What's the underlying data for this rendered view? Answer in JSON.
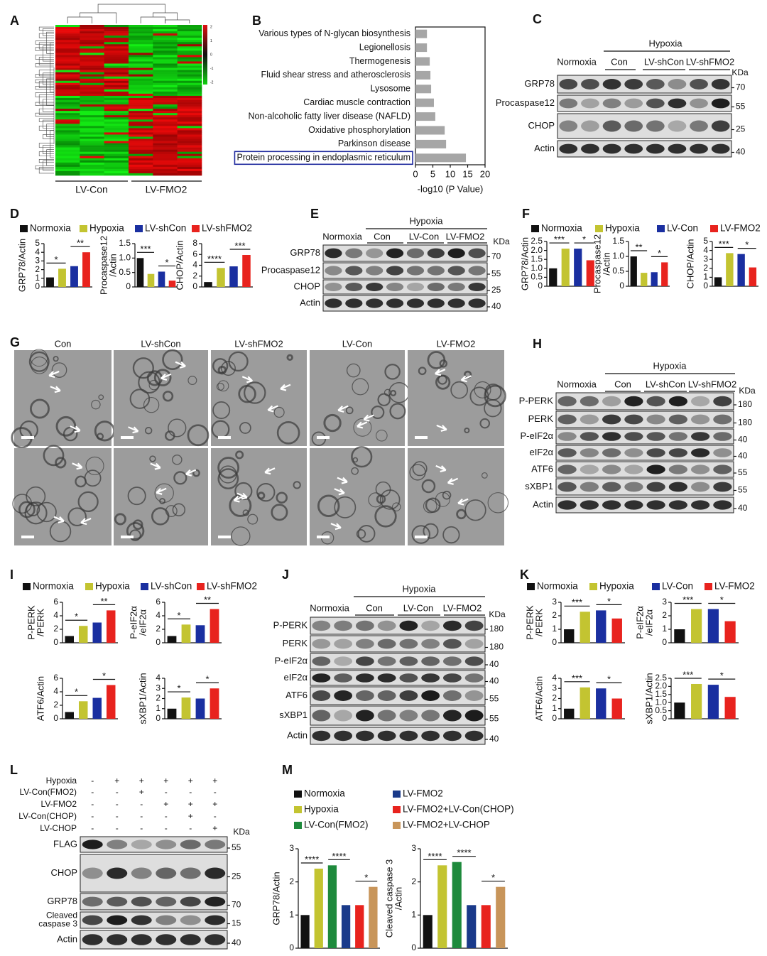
{
  "heatmap": {
    "letter": "A",
    "groups": [
      "LV-Con",
      "LV-FMO2"
    ],
    "scale_ticks": [
      2,
      1,
      0,
      -1,
      -2
    ]
  },
  "chart_data": [
    {
      "letter": "B",
      "type": "hbar",
      "categories": [
        "Various types of N-glycan biosynthesis",
        "Legionellosis",
        "Thermogenesis",
        "Fluid shear stress and atherosclerosis",
        "Lysosome",
        "Cardiac muscle contraction",
        "Non-alcoholic fatty liver disease (NAFLD)",
        "Oxidative phosphorylation",
        "Parkinson disease",
        "Protein processing in endoplasmic reticulum"
      ],
      "values": [
        3.3,
        3.3,
        4.1,
        4.3,
        4.5,
        5.3,
        5.7,
        8.4,
        8.8,
        14.5
      ],
      "color": "#a6a6a6",
      "xlabel": "-log10 (P Value)",
      "xlim": [
        0,
        20
      ],
      "xticks": [
        0,
        5,
        10,
        15,
        20
      ],
      "highlight_index": 9,
      "highlight_color": "#1f2a9e"
    },
    {
      "letter": "D",
      "type": "bar",
      "series": [
        {
          "name": "Normoxia",
          "color": "#111111"
        },
        {
          "name": "Hypoxia",
          "color": "#c3c431"
        },
        {
          "name": "LV-shCon",
          "color": "#1a2fa0"
        },
        {
          "name": "LV-shFMO2",
          "color": "#e8231e"
        }
      ],
      "charts": [
        {
          "ylabel": [
            "GRP78/Actin"
          ],
          "ylim": [
            0,
            5
          ],
          "yticks": [
            0,
            1,
            2,
            3,
            4,
            5
          ],
          "values": [
            1.1,
            2.1,
            2.4,
            4.0
          ],
          "significance": [
            "*",
            "**"
          ]
        },
        {
          "ylabel": [
            "Procaspase12",
            "/Actin"
          ],
          "ylim": [
            0,
            1.5
          ],
          "yticks": [
            0,
            0.5,
            {
              "value": 1,
              "label": "1.0"
            },
            1.5
          ],
          "values": [
            1.0,
            0.45,
            0.53,
            0.22
          ],
          "significance": [
            "***",
            "*"
          ]
        },
        {
          "ylabel": [
            "CHOP/Actin"
          ],
          "ylim": [
            0,
            8
          ],
          "yticks": [
            0,
            2,
            4,
            6,
            8
          ],
          "values": [
            0.9,
            3.5,
            3.8,
            5.9
          ],
          "significance": [
            "****",
            "***"
          ]
        }
      ]
    },
    {
      "letter": "F",
      "type": "bar",
      "series": [
        {
          "name": "Normoxia",
          "color": "#111111"
        },
        {
          "name": "Hypoxia",
          "color": "#c3c431"
        },
        {
          "name": "LV-Con",
          "color": "#1a2fa0"
        },
        {
          "name": "LV-FMO2",
          "color": "#e8231e"
        }
      ],
      "charts": [
        {
          "ylabel": [
            "GRP78/Actin"
          ],
          "ylim": [
            0,
            2.5
          ],
          "yticks": [
            0,
            0.5,
            {
              "value": 1,
              "label": "1.0"
            },
            1.5,
            {
              "value": 2,
              "label": "2.0"
            },
            2.5
          ],
          "values": [
            1.0,
            2.1,
            2.1,
            1.45
          ],
          "significance": [
            "***",
            "*"
          ]
        },
        {
          "ylabel": [
            "Procaspase12",
            "/Actin"
          ],
          "ylim": [
            0,
            1.5
          ],
          "yticks": [
            0,
            0.5,
            {
              "value": 1,
              "label": "1.0"
            },
            1.5
          ],
          "values": [
            1.0,
            0.45,
            0.47,
            0.8
          ],
          "significance": [
            "**",
            "*"
          ]
        },
        {
          "ylabel": [
            "CHOP/Actin"
          ],
          "ylim": [
            0,
            5
          ],
          "yticks": [
            0,
            1,
            2,
            3,
            4,
            5
          ],
          "values": [
            1.0,
            3.7,
            3.6,
            2.1
          ],
          "significance": [
            "***",
            "*"
          ]
        }
      ]
    },
    {
      "letter": "I",
      "type": "bar",
      "series": [
        {
          "name": "Normoxia",
          "color": "#111111"
        },
        {
          "name": "Hypoxia",
          "color": "#c3c431"
        },
        {
          "name": "LV-shCon",
          "color": "#1a2fa0"
        },
        {
          "name": "LV-shFMO2",
          "color": "#e8231e"
        }
      ],
      "charts": [
        {
          "ylabel": [
            "P-PERK",
            "/PERK"
          ],
          "ylim": [
            0,
            6
          ],
          "yticks": [
            0,
            2,
            4,
            6
          ],
          "values": [
            1.0,
            2.5,
            3.0,
            4.8
          ],
          "significance": [
            "*",
            "**"
          ]
        },
        {
          "ylabel": [
            "P-eIF2α",
            "/eIF2α"
          ],
          "ylim": [
            0,
            6
          ],
          "yticks": [
            0,
            2,
            4,
            6
          ],
          "values": [
            1.0,
            2.7,
            2.6,
            5.0
          ],
          "significance": [
            "*",
            "**"
          ]
        },
        {
          "ylabel": [
            "ATF6/Actin"
          ],
          "ylim": [
            0,
            6
          ],
          "yticks": [
            0,
            2,
            4,
            6
          ],
          "values": [
            1.0,
            2.6,
            3.1,
            5.0
          ],
          "significance": [
            "*",
            "*"
          ]
        },
        {
          "ylabel": [
            "sXBP1/Actin"
          ],
          "ylim": [
            0,
            4
          ],
          "yticks": [
            0,
            1,
            2,
            3,
            4
          ],
          "values": [
            1.0,
            2.1,
            2.0,
            3.0
          ],
          "significance": [
            "*",
            "*"
          ]
        }
      ]
    },
    {
      "letter": "K",
      "type": "bar",
      "series": [
        {
          "name": "Normoxia",
          "color": "#111111"
        },
        {
          "name": "Hypoxia",
          "color": "#c3c431"
        },
        {
          "name": "LV-Con",
          "color": "#1a2fa0"
        },
        {
          "name": "LV-FMO2",
          "color": "#e8231e"
        }
      ],
      "charts": [
        {
          "ylabel": [
            "P-PERK",
            "/PERK"
          ],
          "ylim": [
            0,
            3
          ],
          "yticks": [
            0,
            1,
            2,
            3
          ],
          "values": [
            1.0,
            2.3,
            2.4,
            1.8
          ],
          "significance": [
            "***",
            "*"
          ]
        },
        {
          "ylabel": [
            "P-eIF2α",
            "/eIF2α"
          ],
          "ylim": [
            0,
            3
          ],
          "yticks": [
            0,
            1,
            2,
            3
          ],
          "values": [
            1.0,
            2.5,
            2.5,
            1.6
          ],
          "significance": [
            "***",
            "*"
          ]
        },
        {
          "ylabel": [
            "ATF6/Actin"
          ],
          "ylim": [
            0,
            4
          ],
          "yticks": [
            0,
            1,
            2,
            3,
            4
          ],
          "values": [
            1.0,
            3.1,
            3.0,
            2.0
          ],
          "significance": [
            "***",
            "*"
          ]
        },
        {
          "ylabel": [
            "sXBP1/Actin"
          ],
          "ylim": [
            0,
            2.5
          ],
          "yticks": [
            0,
            0.5,
            {
              "value": 1,
              "label": "1.0"
            },
            1.5,
            {
              "value": 2,
              "label": "2.0"
            },
            2.5
          ],
          "values": [
            1.0,
            2.15,
            2.1,
            1.35
          ],
          "significance": [
            "***",
            "*"
          ]
        }
      ]
    },
    {
      "letter": "M",
      "type": "bar",
      "series": [
        {
          "name": "Normoxia",
          "color": "#111111"
        },
        {
          "name": "Hypoxia",
          "color": "#c3c431"
        },
        {
          "name": "LV-Con(FMO2)",
          "color": "#1e8a3c"
        },
        {
          "name": "LV-FMO2",
          "color": "#1a3a8a"
        },
        {
          "name": "LV-FMO2+LV-Con(CHOP)",
          "color": "#e8231e"
        },
        {
          "name": "LV-FMO2+LV-CHOP",
          "color": "#c8955a"
        }
      ],
      "charts": [
        {
          "ylabel": [
            "GRP78/Actin"
          ],
          "ylim": [
            0,
            3
          ],
          "yticks": [
            0,
            1,
            2,
            3
          ],
          "values": [
            1.0,
            2.4,
            2.5,
            1.3,
            1.3,
            1.85
          ],
          "significance": [
            "****",
            "****",
            "*"
          ]
        },
        {
          "ylabel": [
            "Cleaved caspase 3",
            "/Actin"
          ],
          "ylim": [
            0,
            3
          ],
          "yticks": [
            0,
            1,
            2,
            3
          ],
          "values": [
            1.0,
            2.5,
            2.6,
            1.3,
            1.3,
            1.85
          ],
          "significance": [
            "****",
            "****",
            "*"
          ]
        }
      ]
    }
  ],
  "blots": [
    {
      "letter": "C",
      "header": "Hypoxia",
      "groups": [
        "Normoxia",
        "Con",
        "LV-shCon",
        "LV-shFMO2"
      ],
      "kda_label": "KDa",
      "rows": [
        {
          "name": "GRP78",
          "kda": 70
        },
        {
          "name": "Procaspase12",
          "kda": 55
        },
        {
          "name": "CHOP",
          "kda": 25
        },
        {
          "name": "Actin",
          "kda": 40
        }
      ]
    },
    {
      "letter": "E",
      "header": "Hypoxia",
      "groups": [
        "Normoxia",
        "Con",
        "LV-Con",
        "LV-FMO2"
      ],
      "kda_label": "KDa",
      "rows": [
        {
          "name": "GRP78",
          "kda": 70
        },
        {
          "name": "Procaspase12",
          "kda": 55
        },
        {
          "name": "CHOP",
          "kda": 25
        },
        {
          "name": "Actin",
          "kda": 40
        }
      ]
    },
    {
      "letter": "H",
      "header": "Hypoxia",
      "groups": [
        "Normoxia",
        "Con",
        "LV-shCon",
        "LV-shFMO2"
      ],
      "kda_label": "KDa",
      "rows": [
        {
          "name": "P-PERK",
          "kda": 180
        },
        {
          "name": "PERK",
          "kda": 180
        },
        {
          "name": "P-eIF2α",
          "kda": 40
        },
        {
          "name": "eIF2α",
          "kda": 40
        },
        {
          "name": "ATF6",
          "kda": 55
        },
        {
          "name": "sXBP1",
          "kda": 55
        },
        {
          "name": "Actin",
          "kda": 40
        }
      ]
    },
    {
      "letter": "J",
      "header": "Hypoxia",
      "groups": [
        "Normoxia",
        "Con",
        "LV-Con",
        "LV-FMO2"
      ],
      "kda_label": "KDa",
      "rows": [
        {
          "name": "P-PERK",
          "kda": 180
        },
        {
          "name": "PERK",
          "kda": 180
        },
        {
          "name": "P-eIF2α",
          "kda": 40
        },
        {
          "name": "eIF2α",
          "kda": 40
        },
        {
          "name": "ATF6",
          "kda": 55
        },
        {
          "name": "sXBP1",
          "kda": 55
        },
        {
          "name": "Actin",
          "kda": 40
        }
      ]
    },
    {
      "letter": "L",
      "kda_label": "KDa",
      "conditions": [
        {
          "name": "Hypoxia",
          "marks": [
            "-",
            "+",
            "+",
            "+",
            "+",
            "+"
          ]
        },
        {
          "name": "LV-Con(FMO2)",
          "marks": [
            "-",
            "-",
            "+",
            "-",
            "-",
            "-"
          ]
        },
        {
          "name": "LV-FMO2",
          "marks": [
            "-",
            "-",
            "-",
            "+",
            "+",
            "+"
          ]
        },
        {
          "name": "LV-Con(CHOP)",
          "marks": [
            "-",
            "-",
            "-",
            "-",
            "+",
            "-"
          ]
        },
        {
          "name": "LV-CHOP",
          "marks": [
            "-",
            "-",
            "-",
            "-",
            "-",
            "+"
          ]
        }
      ],
      "rows": [
        {
          "name": "FLAG",
          "kda": 55
        },
        {
          "name": "CHOP",
          "kda": 25
        },
        {
          "name": "GRP78",
          "kda": 70
        },
        {
          "name": [
            "Cleaved",
            "caspase 3"
          ],
          "kda": 15
        },
        {
          "name": "Actin",
          "kda": 40
        }
      ]
    }
  ],
  "micrographs": {
    "letter": "G",
    "columns": [
      "Con",
      "LV-shCon",
      "LV-shFMO2",
      "LV-Con",
      "LV-FMO2"
    ]
  }
}
